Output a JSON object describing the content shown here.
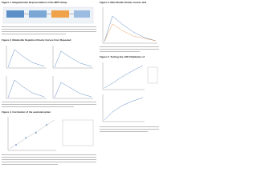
{
  "figures": [
    {
      "title": "Figure 1. Diagrammatic Representation of the MPS Setup"
    },
    {
      "title": "Figure 2. Metabolite Depletion Kinetic Curves from Repeated"
    },
    {
      "title": "Figure 4. Correlation of the acetaminophen"
    },
    {
      "title": "Figure 3. Microfluidic Kinetic Curves and"
    },
    {
      "title": "Figure 5. Testing the LOD (Validation of"
    }
  ]
}
